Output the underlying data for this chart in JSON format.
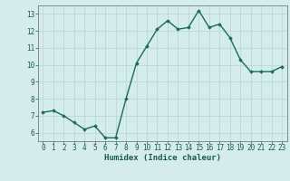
{
  "x": [
    0,
    1,
    2,
    3,
    4,
    5,
    6,
    7,
    8,
    9,
    10,
    11,
    12,
    13,
    14,
    15,
    16,
    17,
    18,
    19,
    20,
    21,
    22,
    23
  ],
  "y": [
    7.2,
    7.3,
    7.0,
    6.6,
    6.2,
    6.4,
    5.7,
    5.7,
    8.0,
    10.1,
    11.1,
    12.1,
    12.6,
    12.1,
    12.2,
    13.2,
    12.2,
    12.4,
    11.6,
    10.3,
    9.6,
    9.6,
    9.6,
    9.9
  ],
  "xlabel": "Humidex (Indice chaleur)",
  "xlim": [
    -0.5,
    23.5
  ],
  "ylim": [
    5.5,
    13.5
  ],
  "yticks": [
    6,
    7,
    8,
    9,
    10,
    11,
    12,
    13
  ],
  "xticks": [
    0,
    1,
    2,
    3,
    4,
    5,
    6,
    7,
    8,
    9,
    10,
    11,
    12,
    13,
    14,
    15,
    16,
    17,
    18,
    19,
    20,
    21,
    22,
    23
  ],
  "line_color": "#1a6b5a",
  "marker": "D",
  "marker_size": 1.8,
  "bg_color": "#d4edec",
  "grid_color": "#b8d8d6",
  "tick_label_fontsize": 5.5,
  "xlabel_fontsize": 6.5,
  "line_width": 1.0
}
